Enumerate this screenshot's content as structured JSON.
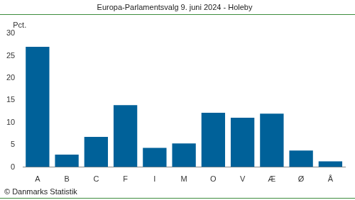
{
  "chart_data": {
    "type": "bar",
    "title": "Europa-Parlamentsvalg 9. juni 2024 - Holeby",
    "y_label": "Pct.",
    "source": "© Danmarks Statistik",
    "categories": [
      "A",
      "B",
      "C",
      "F",
      "I",
      "M",
      "O",
      "V",
      "Æ",
      "Ø",
      "Å"
    ],
    "values": [
      27.0,
      2.8,
      6.8,
      13.9,
      4.3,
      5.3,
      12.2,
      11.1,
      12.0,
      3.7,
      1.3
    ],
    "color": "#006199",
    "ylim": [
      0,
      30
    ],
    "yticks": [
      0,
      5,
      10,
      15,
      20,
      25,
      30
    ],
    "grid": false
  }
}
